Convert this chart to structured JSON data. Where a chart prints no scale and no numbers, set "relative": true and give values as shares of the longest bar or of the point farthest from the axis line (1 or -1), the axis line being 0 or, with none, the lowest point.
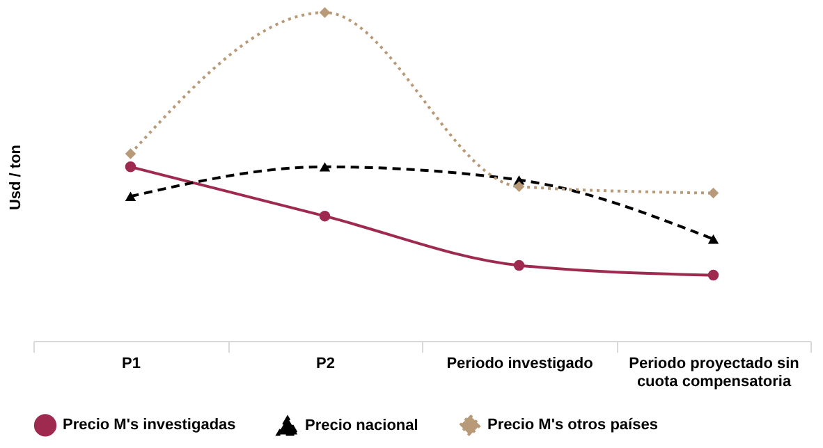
{
  "chart_data": {
    "type": "line",
    "relative": true,
    "ylabel": "Usd / ton",
    "categories": [
      "P1",
      "P2",
      "Periodo investigado",
      "Periodo proyectado sin cuota compensatoria"
    ],
    "series": [
      {
        "name": "Precio M's investigadas",
        "color": "#9e2a4f",
        "values": [
          0.53,
          0.38,
          0.23,
          0.2
        ],
        "marker": "circle",
        "line_style": "solid"
      },
      {
        "name": "Precio nacional",
        "color": "#000000",
        "values": [
          0.44,
          0.53,
          0.49,
          0.31
        ],
        "marker": "triangle",
        "line_style": "dashed"
      },
      {
        "name": "Precio M's otros países",
        "color": "#b89a78",
        "values": [
          0.57,
          1.0,
          0.47,
          0.45
        ],
        "marker": "diamond",
        "line_style": "dotted"
      }
    ],
    "legend": "bottom",
    "grid": false
  }
}
